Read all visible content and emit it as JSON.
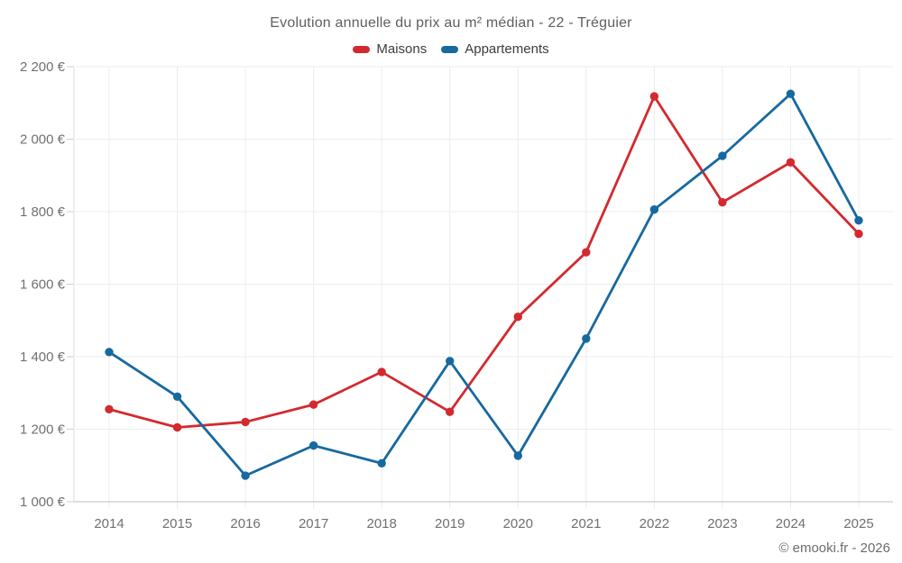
{
  "watermark": "© emooki.fr - 2026",
  "chart_data": {
    "type": "line",
    "title": "Evolution annuelle du prix au m² médian - 22 - Tréguier",
    "x": [
      "2014",
      "2015",
      "2016",
      "2017",
      "2018",
      "2019",
      "2020",
      "2021",
      "2022",
      "2023",
      "2024",
      "2025"
    ],
    "series": [
      {
        "name": "Maisons",
        "color": "#d4292f",
        "values": [
          1255,
          1205,
          1220,
          1268,
          1358,
          1248,
          1510,
          1688,
          2118,
          1826,
          1936,
          1739
        ]
      },
      {
        "name": "Appartements",
        "color": "#17699f",
        "values": [
          1413,
          1290,
          1072,
          1155,
          1106,
          1388,
          1127,
          1450,
          1806,
          1954,
          2125,
          1776
        ]
      }
    ],
    "ylim": [
      1000,
      2200
    ],
    "y_ticks": [
      {
        "value": 1000,
        "label": "1 000 €"
      },
      {
        "value": 1200,
        "label": "1 200 €"
      },
      {
        "value": 1400,
        "label": "1 400 €"
      },
      {
        "value": 1600,
        "label": "1 600 €"
      },
      {
        "value": 1800,
        "label": "1 800 €"
      },
      {
        "value": 2000,
        "label": "2 000 €"
      },
      {
        "value": 2200,
        "label": "2 200 €"
      }
    ],
    "grid": true,
    "legend_position": "top",
    "colors": {
      "grid": "#ececec",
      "y_axis_line": "#dcdcdc",
      "x_axis_line": "#bdbdbd",
      "tick_mark": "#d0d0d0",
      "tick_text": "#707070",
      "title_text": "#5f5f5f",
      "legend_text": "#3c3c3c",
      "background": "#ffffff"
    }
  }
}
